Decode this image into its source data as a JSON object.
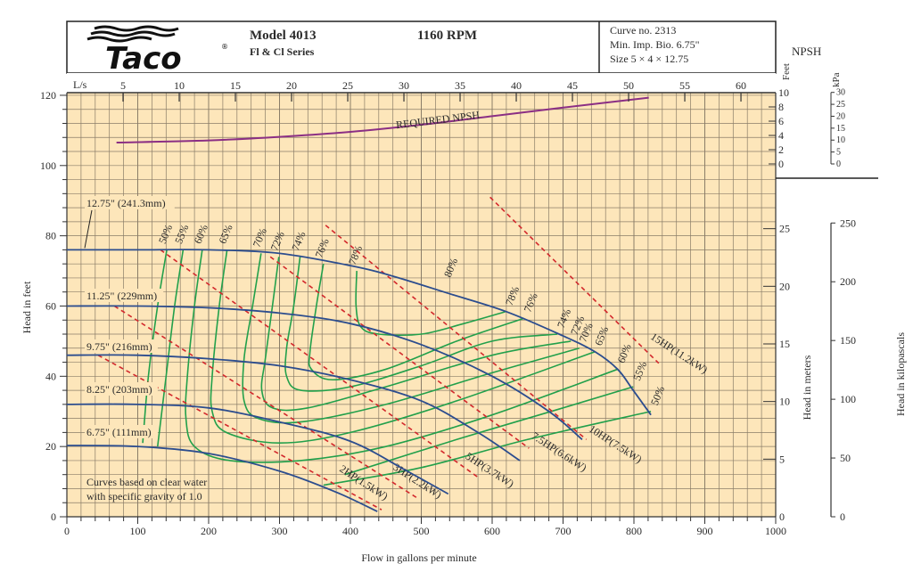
{
  "header": {
    "brand": "Taco",
    "model": "Model 4013",
    "series": "Fl & Cl Series",
    "rpm": "1160 RPM",
    "curve_no": "Curve no. 2313",
    "min_imp": "Min. Imp. Bio. 6.75\"",
    "size": "Size 5 × 4 × 12.75"
  },
  "chart_data": {
    "type": "line",
    "title": "",
    "xlabel": "Flow in gallons per minute",
    "ylabel": "Head in feet",
    "y2label": "Head in meters",
    "y3label": "Head in kilopascals",
    "xlim": [
      0,
      1000
    ],
    "ylim": [
      0,
      120
    ],
    "grid": true,
    "x_ticks": [
      0,
      100,
      200,
      300,
      400,
      500,
      600,
      700,
      800,
      900,
      1000
    ],
    "y_ticks": [
      0,
      20,
      40,
      60,
      80,
      100,
      120
    ],
    "top_axis": {
      "label": "L/s",
      "ticks": [
        5,
        10,
        15,
        20,
        25,
        30,
        35,
        40,
        45,
        50,
        55,
        60
      ]
    },
    "meters_ticks": [
      0,
      5,
      10,
      15,
      20,
      25
    ],
    "kpa_ticks": [
      0,
      50,
      100,
      150,
      200,
      250
    ],
    "npsh": {
      "title": "NPSH",
      "feet_label": "Feet",
      "kpa_label": "kPa",
      "feet_ticks": [
        0,
        2,
        4,
        6,
        8,
        10
      ],
      "kpa_ticks": [
        0,
        5,
        10,
        15,
        20,
        25,
        30
      ],
      "curve_label": "REQUIRED NPSH",
      "curve": [
        [
          70,
          3
        ],
        [
          200,
          3.3
        ],
        [
          300,
          3.8
        ],
        [
          400,
          4.5
        ],
        [
          500,
          5.5
        ],
        [
          600,
          6.7
        ],
        [
          700,
          7.9
        ],
        [
          821,
          9.3
        ]
      ]
    },
    "impeller_curves": [
      {
        "name": "12.75\" (241.3mm)",
        "points": [
          [
            0,
            76
          ],
          [
            100,
            76
          ],
          [
            200,
            76
          ],
          [
            300,
            75
          ],
          [
            400,
            71.5
          ],
          [
            460,
            68.5
          ],
          [
            540,
            63.5
          ],
          [
            620,
            58.4
          ],
          [
            700,
            51.5
          ],
          [
            745,
            47
          ],
          [
            777,
            42
          ],
          [
            799,
            36
          ],
          [
            824,
            29
          ]
        ]
      },
      {
        "name": "11.25\" (229mm)",
        "points": [
          [
            0,
            60
          ],
          [
            100,
            60
          ],
          [
            200,
            59.5
          ],
          [
            300,
            58
          ],
          [
            400,
            55
          ],
          [
            500,
            49
          ],
          [
            600,
            40
          ],
          [
            680,
            30
          ],
          [
            727,
            22
          ]
        ]
      },
      {
        "name": "9.75\" (216mm)",
        "points": [
          [
            0,
            46
          ],
          [
            100,
            46
          ],
          [
            200,
            45
          ],
          [
            300,
            43
          ],
          [
            400,
            39
          ],
          [
            500,
            33
          ],
          [
            580,
            24
          ],
          [
            639,
            16
          ]
        ]
      },
      {
        "name": "8.25\" (203mm)",
        "points": [
          [
            0,
            32
          ],
          [
            100,
            32
          ],
          [
            200,
            31
          ],
          [
            300,
            27
          ],
          [
            400,
            21.5
          ],
          [
            480,
            13
          ],
          [
            538,
            6.5
          ]
        ]
      },
      {
        "name": "6.75\" (111mm)",
        "points": [
          [
            0,
            20.3
          ],
          [
            100,
            20
          ],
          [
            200,
            18
          ],
          [
            300,
            13
          ],
          [
            380,
            7
          ],
          [
            438,
            1.5
          ]
        ]
      }
    ],
    "efficiency_curves": [
      {
        "label": "50%",
        "segments": [
          [
            [
              141,
              76
            ],
            [
              128,
              60
            ],
            [
              115,
              40
            ],
            [
              107,
              21
            ]
          ],
          [
            [
              362,
              9
            ],
            [
              500,
              14
            ],
            [
              650,
              22
            ],
            [
              824,
              30
            ]
          ]
        ]
      },
      {
        "label": "55%",
        "segments": [
          [
            [
              164,
              76
            ],
            [
              152,
              60
            ],
            [
              140,
              40
            ],
            [
              128,
              20
            ]
          ],
          [
            [
              392,
              12
            ],
            [
              550,
              22
            ],
            [
              700,
              31
            ],
            [
              799,
              37
            ]
          ]
        ]
      },
      {
        "label": "60%",
        "segments": [
          [
            [
              191,
              76
            ],
            [
              180,
              60
            ],
            [
              170,
              40
            ],
            [
              168,
              28
            ],
            [
              180,
              20
            ],
            [
              230,
              16
            ],
            [
              330,
              16
            ],
            [
              450,
              20
            ],
            [
              600,
              29
            ],
            [
              777,
              42
            ]
          ]
        ]
      },
      {
        "label": "65%",
        "segments": [
          [
            [
              226,
              76
            ],
            [
              215,
              60
            ],
            [
              205,
              40
            ],
            [
              205,
              30
            ],
            [
              225,
              24
            ],
            [
              300,
              21
            ],
            [
              400,
              24
            ],
            [
              550,
              33
            ],
            [
              745,
              47
            ]
          ]
        ]
      },
      {
        "label": "70%",
        "segments": [
          [
            [
              274,
              75
            ],
            [
              262,
              60
            ],
            [
              250,
              45
            ],
            [
              250,
              33
            ],
            [
              270,
              28
            ],
            [
              330,
              27
            ],
            [
              450,
              32
            ],
            [
              600,
              41
            ],
            [
              723,
              48
            ]
          ]
        ]
      },
      {
        "label": "72%",
        "segments": [
          [
            [
              299,
              74
            ],
            [
              290,
              60
            ],
            [
              280,
              45
            ],
            [
              275,
              36
            ],
            [
              290,
              31
            ],
            [
              340,
              31
            ],
            [
              450,
              37
            ],
            [
              600,
              46
            ],
            [
              711,
              50
            ]
          ]
        ]
      },
      {
        "label": "74%",
        "segments": [
          [
            [
              329,
              74
            ],
            [
              320,
              60
            ],
            [
              310,
              48
            ],
            [
              310,
              40
            ],
            [
              330,
              36
            ],
            [
              400,
              37
            ],
            [
              500,
              43
            ],
            [
              600,
              50
            ],
            [
              692,
              52
            ]
          ]
        ]
      },
      {
        "label": "76%",
        "segments": [
          [
            [
              362,
              72
            ],
            [
              352,
              60
            ],
            [
              343,
              47
            ],
            [
              345,
              42
            ],
            [
              375,
              39
            ],
            [
              450,
              42
            ],
            [
              550,
              50
            ],
            [
              645,
              56.5
            ]
          ]
        ]
      },
      {
        "label": "78%",
        "segments": [
          [
            [
              409,
              70
            ],
            [
              408,
              60
            ],
            [
              415,
              54
            ],
            [
              440,
              52
            ],
            [
              500,
              52
            ],
            [
              560,
              55
            ],
            [
              619,
              58.4
            ]
          ]
        ]
      },
      {
        "label": "80%",
        "segments": []
      }
    ],
    "power_lines": [
      {
        "label": "2HP(1.5kW)",
        "points": [
          [
            44,
            46
          ],
          [
            444,
            2
          ]
        ]
      },
      {
        "label": "3HP(2.2kW)",
        "points": [
          [
            67,
            60
          ],
          [
            497,
            5
          ]
        ]
      },
      {
        "label": "5HP(3.7kW)",
        "points": [
          [
            132,
            76
          ],
          [
            579,
            11.4
          ]
        ]
      },
      {
        "label": "7.5HP(6.6kW)",
        "points": [
          [
            287,
            74
          ],
          [
            652,
            19.5
          ]
        ]
      },
      {
        "label": "10HP(7.5kW)",
        "points": [
          [
            365,
            83
          ],
          [
            733,
            22
          ]
        ]
      },
      {
        "label": "15HP(11.2kW)",
        "points": [
          [
            597,
            91
          ],
          [
            835,
            43.7
          ]
        ]
      }
    ],
    "note": [
      "Curves based on clear water",
      "with specific gravity of 1.0"
    ],
    "colors": {
      "background": "#fde6ba",
      "grid": "#8a7d68",
      "impeller": "#2c4d8e",
      "efficiency": "#22a04b",
      "power": "#d2282c",
      "npsh": "#8b2f84"
    }
  }
}
